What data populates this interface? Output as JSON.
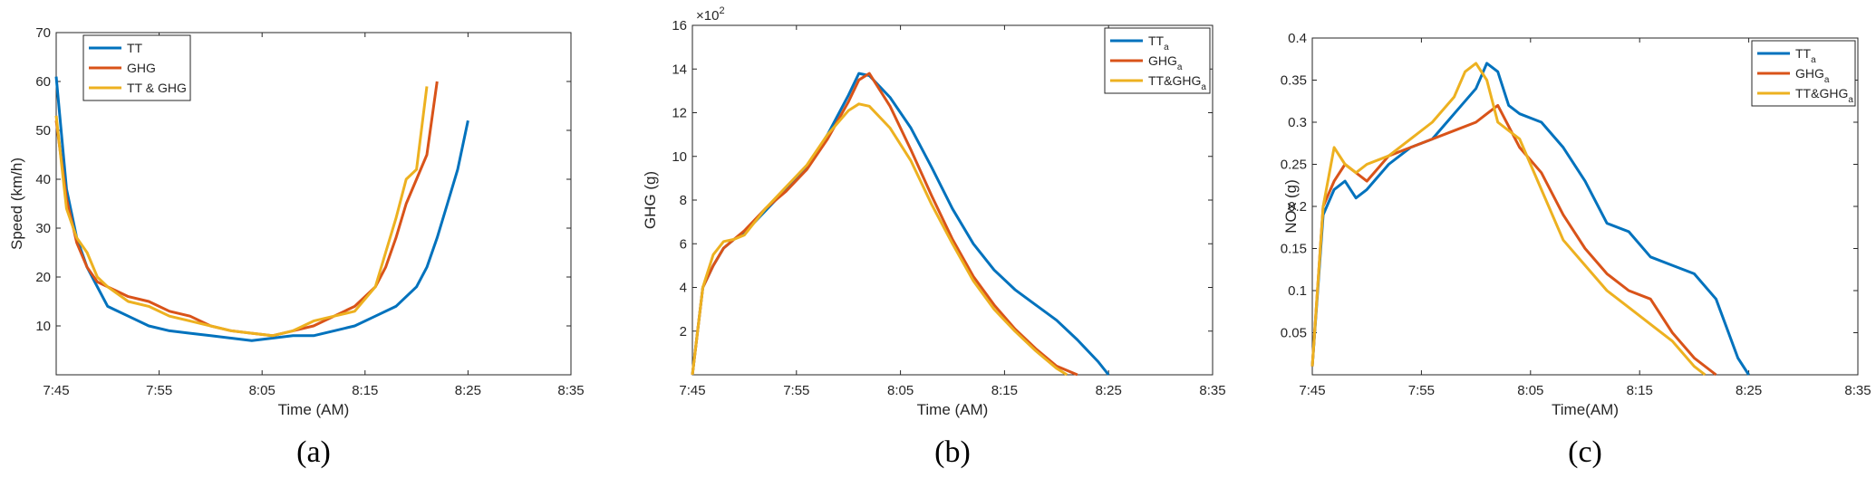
{
  "chart_data": [
    {
      "type": "line",
      "panel_label": "(a)",
      "xlabel": "Time (AM)",
      "ylabel": "Speed (km/h)",
      "x_ticks": [
        "7:45",
        "7:55",
        "8:05",
        "8:15",
        "8:25",
        "8:35"
      ],
      "xlim": [
        "7:45",
        "8:35"
      ],
      "y_ticks": [
        "10",
        "20",
        "30",
        "40",
        "50",
        "60",
        "70"
      ],
      "ylim": [
        0,
        70
      ],
      "legend_position": "top-left",
      "series": [
        {
          "name": "TT",
          "color": "#0072BD",
          "x": [
            "7:45",
            "7:46",
            "7:47",
            "7:48",
            "7:49",
            "7:50",
            "7:52",
            "7:54",
            "7:56",
            "7:58",
            "8:00",
            "8:02",
            "8:04",
            "8:06",
            "8:08",
            "8:10",
            "8:12",
            "8:14",
            "8:16",
            "8:18",
            "8:20",
            "8:21",
            "8:22",
            "8:23",
            "8:24",
            "8:25"
          ],
          "y": [
            61,
            38,
            28,
            22,
            18,
            14,
            12,
            10,
            9,
            8.5,
            8,
            7.5,
            7,
            7.5,
            8,
            8,
            9,
            10,
            12,
            14,
            18,
            22,
            28,
            35,
            42,
            52
          ]
        },
        {
          "name": "GHG",
          "color": "#D95319",
          "x": [
            "7:45",
            "7:46",
            "7:47",
            "7:48",
            "7:49",
            "7:50",
            "7:52",
            "7:54",
            "7:56",
            "7:58",
            "8:00",
            "8:02",
            "8:04",
            "8:06",
            "8:08",
            "8:10",
            "8:12",
            "8:14",
            "8:16",
            "8:17",
            "8:18",
            "8:19",
            "8:20",
            "8:21",
            "8:22"
          ],
          "y": [
            52,
            36,
            27,
            22,
            19,
            18,
            16,
            15,
            13,
            12,
            10,
            9,
            8.5,
            8,
            9,
            10,
            12,
            14,
            18,
            22,
            28,
            35,
            40,
            45,
            60
          ]
        },
        {
          "name": "TT & GHG",
          "color": "#EDB120",
          "x": [
            "7:45",
            "7:46",
            "7:47",
            "7:48",
            "7:49",
            "7:50",
            "7:52",
            "7:54",
            "7:56",
            "7:58",
            "8:00",
            "8:02",
            "8:04",
            "8:06",
            "8:08",
            "8:10",
            "8:12",
            "8:14",
            "8:16",
            "8:17",
            "8:18",
            "8:19",
            "8:20",
            "8:21"
          ],
          "y": [
            53,
            34,
            28,
            25,
            20,
            18,
            15,
            14,
            12,
            11,
            10,
            9,
            8.5,
            8,
            9,
            11,
            12,
            13,
            18,
            25,
            32,
            40,
            42,
            59
          ]
        }
      ]
    },
    {
      "type": "line",
      "panel_label": "(b)",
      "xlabel": "Time (AM)",
      "ylabel": "GHG (g)",
      "multiplier_base": "×10",
      "multiplier_exp": "2",
      "x_ticks": [
        "7:45",
        "7:55",
        "8:05",
        "8:15",
        "8:25",
        "8:35"
      ],
      "xlim": [
        "7:45",
        "8:35"
      ],
      "y_ticks": [
        "2",
        "4",
        "6",
        "8",
        "10",
        "12",
        "14",
        "16"
      ],
      "ylim": [
        0,
        16
      ],
      "legend_position": "top-right",
      "series": [
        {
          "name": "TT",
          "name_sub": "a",
          "color": "#0072BD",
          "x": [
            "7:45",
            "7:46",
            "7:47",
            "7:48",
            "7:49",
            "7:50",
            "7:52",
            "7:54",
            "7:56",
            "7:58",
            "8:00",
            "8:01",
            "8:02",
            "8:04",
            "8:06",
            "8:08",
            "8:10",
            "8:12",
            "8:14",
            "8:16",
            "8:18",
            "8:20",
            "8:22",
            "8:24",
            "8:25"
          ],
          "y": [
            0,
            4,
            5,
            5.8,
            6.2,
            6.5,
            7.5,
            8.5,
            9.5,
            11,
            12.8,
            13.8,
            13.7,
            12.7,
            11.3,
            9.5,
            7.6,
            6,
            4.8,
            3.9,
            3.2,
            2.5,
            1.6,
            0.6,
            0
          ]
        },
        {
          "name": "GHG",
          "name_sub": "a",
          "color": "#D95319",
          "x": [
            "7:45",
            "7:46",
            "7:47",
            "7:48",
            "7:49",
            "7:50",
            "7:52",
            "7:54",
            "7:56",
            "7:58",
            "8:00",
            "8:01",
            "8:02",
            "8:04",
            "8:06",
            "8:08",
            "8:10",
            "8:12",
            "8:14",
            "8:16",
            "8:18",
            "8:20",
            "8:22"
          ],
          "y": [
            0,
            4,
            5,
            5.8,
            6.2,
            6.6,
            7.6,
            8.4,
            9.4,
            10.8,
            12.5,
            13.5,
            13.8,
            12.3,
            10.3,
            8.2,
            6.2,
            4.5,
            3.2,
            2.1,
            1.2,
            0.4,
            0
          ]
        },
        {
          "name": "TT&GHG",
          "name_sub": "a",
          "color": "#EDB120",
          "x": [
            "7:45",
            "7:46",
            "7:47",
            "7:48",
            "7:49",
            "7:50",
            "7:52",
            "7:54",
            "7:56",
            "7:58",
            "8:00",
            "8:01",
            "8:02",
            "8:04",
            "8:06",
            "8:08",
            "8:10",
            "8:12",
            "8:14",
            "8:16",
            "8:18",
            "8:20",
            "8:21"
          ],
          "y": [
            0,
            4,
            5.5,
            6.1,
            6.2,
            6.4,
            7.6,
            8.6,
            9.6,
            11,
            12.1,
            12.4,
            12.3,
            11.3,
            9.8,
            7.8,
            6,
            4.3,
            3,
            2,
            1.1,
            0.3,
            0
          ]
        }
      ]
    },
    {
      "type": "line",
      "panel_label": "(c)",
      "xlabel": "Time(AM)",
      "ylabel": "NOx (g)",
      "x_ticks": [
        "7:45",
        "7:55",
        "8:05",
        "8:15",
        "8:25",
        "8:35"
      ],
      "xlim": [
        "7:45",
        "8:35"
      ],
      "y_ticks": [
        "0.05",
        "0.1",
        "0.15",
        "0.2",
        "0.25",
        "0.3",
        "0.35",
        "0.4"
      ],
      "ylim": [
        0,
        0.4
      ],
      "legend_position": "top-right",
      "series": [
        {
          "name": "TT",
          "name_sub": "a",
          "color": "#0072BD",
          "x": [
            "7:45",
            "7:46",
            "7:47",
            "7:48",
            "7:49",
            "7:50",
            "7:52",
            "7:54",
            "7:56",
            "7:58",
            "8:00",
            "8:01",
            "8:02",
            "8:03",
            "8:04",
            "8:06",
            "8:08",
            "8:10",
            "8:12",
            "8:14",
            "8:16",
            "8:18",
            "8:20",
            "8:22",
            "8:24",
            "8:25"
          ],
          "y": [
            0.01,
            0.19,
            0.22,
            0.23,
            0.21,
            0.22,
            0.25,
            0.27,
            0.28,
            0.31,
            0.34,
            0.37,
            0.36,
            0.32,
            0.31,
            0.3,
            0.27,
            0.23,
            0.18,
            0.17,
            0.14,
            0.13,
            0.12,
            0.09,
            0.02,
            0
          ]
        },
        {
          "name": "GHG",
          "name_sub": "a",
          "color": "#D95319",
          "x": [
            "7:45",
            "7:46",
            "7:47",
            "7:48",
            "7:49",
            "7:50",
            "7:52",
            "7:54",
            "7:56",
            "7:58",
            "8:00",
            "8:01",
            "8:02",
            "8:04",
            "8:06",
            "8:08",
            "8:10",
            "8:12",
            "8:14",
            "8:16",
            "8:18",
            "8:20",
            "8:22"
          ],
          "y": [
            0.01,
            0.2,
            0.23,
            0.25,
            0.24,
            0.23,
            0.26,
            0.27,
            0.28,
            0.29,
            0.3,
            0.31,
            0.32,
            0.27,
            0.24,
            0.19,
            0.15,
            0.12,
            0.1,
            0.09,
            0.05,
            0.02,
            0
          ]
        },
        {
          "name": "TT&GHG",
          "name_sub": "a",
          "color": "#EDB120",
          "x": [
            "7:45",
            "7:46",
            "7:47",
            "7:48",
            "7:49",
            "7:50",
            "7:52",
            "7:54",
            "7:56",
            "7:58",
            "7:59",
            "8:00",
            "8:01",
            "8:02",
            "8:04",
            "8:06",
            "8:08",
            "8:10",
            "8:12",
            "8:14",
            "8:16",
            "8:18",
            "8:20",
            "8:21"
          ],
          "y": [
            0.01,
            0.2,
            0.27,
            0.25,
            0.24,
            0.25,
            0.26,
            0.28,
            0.3,
            0.33,
            0.36,
            0.37,
            0.35,
            0.3,
            0.28,
            0.22,
            0.16,
            0.13,
            0.1,
            0.08,
            0.06,
            0.04,
            0.01,
            0
          ]
        }
      ]
    }
  ]
}
